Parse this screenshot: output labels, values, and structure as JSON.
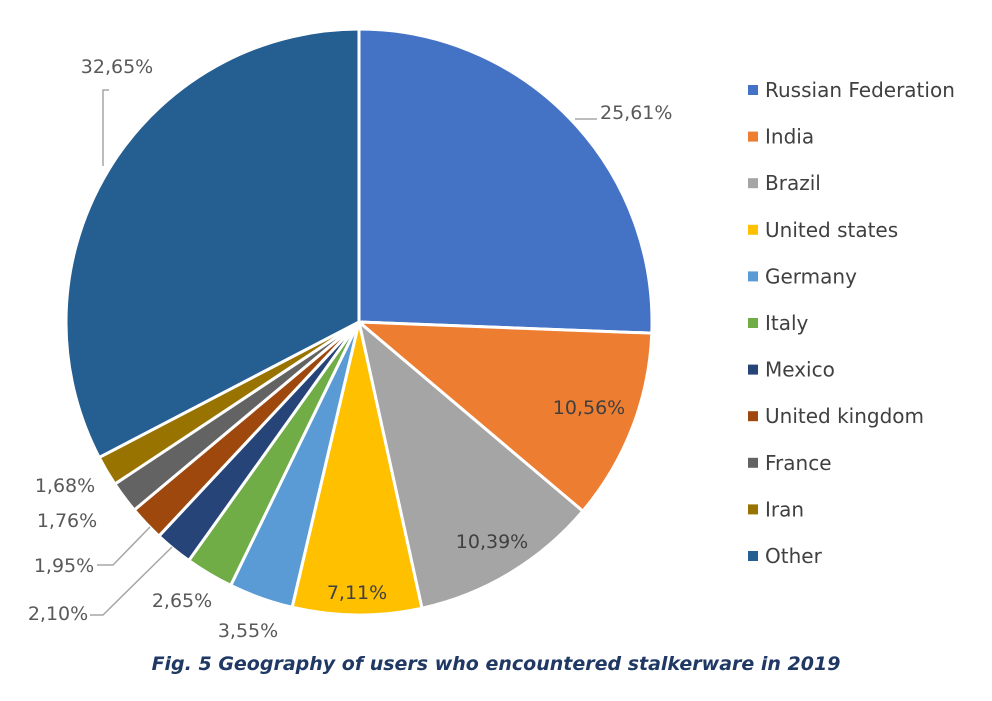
{
  "chart_data": {
    "type": "pie",
    "categories": [
      "Russian Federation",
      "India",
      "Brazil",
      "United states",
      "Germany",
      "Italy",
      "Mexico",
      "United kingdom",
      "France",
      "Iran",
      "Other"
    ],
    "values": [
      25.61,
      10.56,
      10.39,
      7.11,
      3.55,
      2.65,
      2.1,
      1.95,
      1.76,
      1.68,
      32.65
    ],
    "labels": [
      "25,61%",
      "10,56%",
      "10,39%",
      "7,11%",
      "3,55%",
      "2,65%",
      "2,10%",
      "1,95%",
      "1,76%",
      "1,68%",
      "32,65%"
    ],
    "colors": [
      "#4472C4",
      "#ED7D31",
      "#A5A5A5",
      "#FFC000",
      "#5B9BD5",
      "#70AD47",
      "#264478",
      "#9E480E",
      "#636363",
      "#997300",
      "#255E91"
    ],
    "legend_position": "right",
    "caption": "Fig. 5 Geography of users who encountered stalkerware in 2019"
  }
}
